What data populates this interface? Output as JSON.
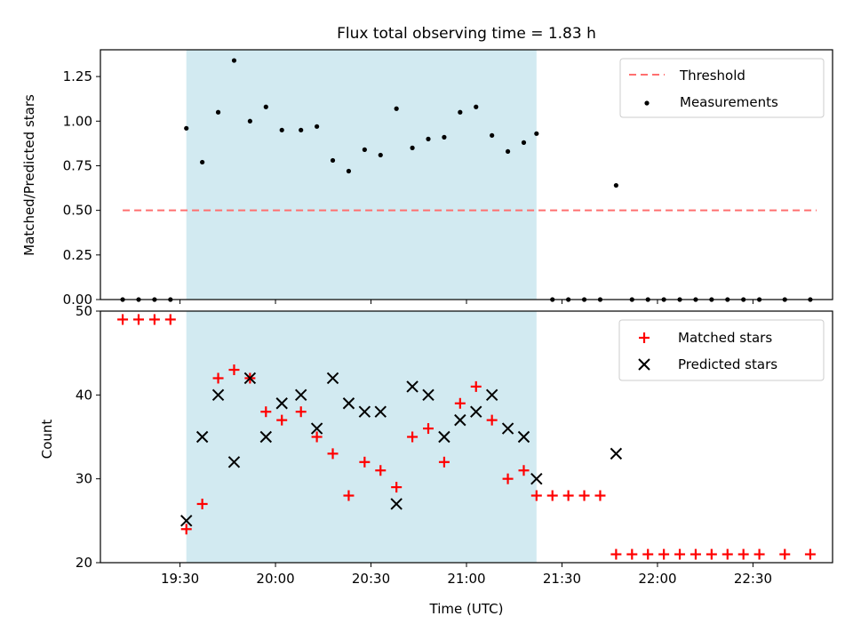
{
  "chart_data": [
    {
      "type": "scatter",
      "title": "Flux total observing time = 1.83 h",
      "ylabel": "Matched/Predicted stars",
      "ylim": [
        0,
        1.4
      ],
      "yticks": [
        "0.00",
        "0.25",
        "0.50",
        "0.75",
        "1.00",
        "1.25"
      ],
      "legend_position": "top-right",
      "shaded_interval": [
        "19:32",
        "21:22"
      ],
      "shaded_color": "#add8e6",
      "threshold": {
        "name": "Threshold",
        "value": 0.5,
        "x_range": [
          "19:12",
          "22:50"
        ],
        "color": "#ff6f6f"
      },
      "series": [
        {
          "name": "Measurements",
          "color": "#000000",
          "points": [
            [
              "19:12",
              0.0
            ],
            [
              "19:17",
              0.0
            ],
            [
              "19:22",
              0.0
            ],
            [
              "19:27",
              0.0
            ],
            [
              "19:32",
              0.96
            ],
            [
              "19:37",
              0.77
            ],
            [
              "19:42",
              1.05
            ],
            [
              "19:47",
              1.34
            ],
            [
              "19:52",
              1.0
            ],
            [
              "19:57",
              1.08
            ],
            [
              "20:02",
              0.95
            ],
            [
              "20:08",
              0.95
            ],
            [
              "20:13",
              0.97
            ],
            [
              "20:18",
              0.78
            ],
            [
              "20:23",
              0.72
            ],
            [
              "20:28",
              0.84
            ],
            [
              "20:33",
              0.81
            ],
            [
              "20:38",
              1.07
            ],
            [
              "20:43",
              0.85
            ],
            [
              "20:48",
              0.9
            ],
            [
              "20:53",
              0.91
            ],
            [
              "20:58",
              1.05
            ],
            [
              "21:03",
              1.08
            ],
            [
              "21:08",
              0.92
            ],
            [
              "21:13",
              0.83
            ],
            [
              "21:18",
              0.88
            ],
            [
              "21:22",
              0.93
            ],
            [
              "21:27",
              0.0
            ],
            [
              "21:32",
              0.0
            ],
            [
              "21:37",
              0.0
            ],
            [
              "21:42",
              0.0
            ],
            [
              "21:47",
              0.64
            ],
            [
              "21:52",
              0.0
            ],
            [
              "21:57",
              0.0
            ],
            [
              "22:02",
              0.0
            ],
            [
              "22:07",
              0.0
            ],
            [
              "22:12",
              0.0
            ],
            [
              "22:17",
              0.0
            ],
            [
              "22:22",
              0.0
            ],
            [
              "22:27",
              0.0
            ],
            [
              "22:32",
              0.0
            ],
            [
              "22:40",
              0.0
            ],
            [
              "22:48",
              0.0
            ]
          ]
        }
      ]
    },
    {
      "type": "scatter",
      "xlabel": "Time (UTC)",
      "ylabel": "Count",
      "ylim": [
        20,
        50
      ],
      "yticks": [
        "20",
        "30",
        "40",
        "50"
      ],
      "xticks": [
        "19:30",
        "20:00",
        "20:30",
        "21:00",
        "21:30",
        "22:00",
        "22:30"
      ],
      "xlim": [
        "19:05",
        "22:55"
      ],
      "legend_position": "top-right",
      "series": [
        {
          "name": "Matched stars",
          "color": "#ff0000",
          "marker": "+",
          "points": [
            [
              "19:12",
              49
            ],
            [
              "19:17",
              49
            ],
            [
              "19:22",
              49
            ],
            [
              "19:27",
              49
            ],
            [
              "19:32",
              24
            ],
            [
              "19:37",
              27
            ],
            [
              "19:42",
              42
            ],
            [
              "19:47",
              43
            ],
            [
              "19:52",
              42
            ],
            [
              "19:57",
              38
            ],
            [
              "20:02",
              37
            ],
            [
              "20:08",
              38
            ],
            [
              "20:13",
              35
            ],
            [
              "20:18",
              33
            ],
            [
              "20:23",
              28
            ],
            [
              "20:28",
              32
            ],
            [
              "20:33",
              31
            ],
            [
              "20:38",
              29
            ],
            [
              "20:43",
              35
            ],
            [
              "20:48",
              36
            ],
            [
              "20:53",
              32
            ],
            [
              "20:58",
              39
            ],
            [
              "21:03",
              41
            ],
            [
              "21:08",
              37
            ],
            [
              "21:13",
              30
            ],
            [
              "21:18",
              31
            ],
            [
              "21:22",
              28
            ],
            [
              "21:27",
              28
            ],
            [
              "21:32",
              28
            ],
            [
              "21:37",
              28
            ],
            [
              "21:42",
              28
            ],
            [
              "21:47",
              21
            ],
            [
              "21:52",
              21
            ],
            [
              "21:57",
              21
            ],
            [
              "22:02",
              21
            ],
            [
              "22:07",
              21
            ],
            [
              "22:12",
              21
            ],
            [
              "22:17",
              21
            ],
            [
              "22:22",
              21
            ],
            [
              "22:27",
              21
            ],
            [
              "22:32",
              21
            ],
            [
              "22:40",
              21
            ],
            [
              "22:48",
              21
            ]
          ]
        },
        {
          "name": "Predicted stars",
          "color": "#000000",
          "marker": "x",
          "points": [
            [
              "19:32",
              25
            ],
            [
              "19:37",
              35
            ],
            [
              "19:42",
              40
            ],
            [
              "19:47",
              32
            ],
            [
              "19:52",
              42
            ],
            [
              "19:57",
              35
            ],
            [
              "20:02",
              39
            ],
            [
              "20:08",
              40
            ],
            [
              "20:13",
              36
            ],
            [
              "20:18",
              42
            ],
            [
              "20:23",
              39
            ],
            [
              "20:28",
              38
            ],
            [
              "20:33",
              38
            ],
            [
              "20:38",
              27
            ],
            [
              "20:43",
              41
            ],
            [
              "20:48",
              40
            ],
            [
              "20:53",
              35
            ],
            [
              "20:58",
              37
            ],
            [
              "21:03",
              38
            ],
            [
              "21:08",
              40
            ],
            [
              "21:13",
              36
            ],
            [
              "21:18",
              35
            ],
            [
              "21:22",
              30
            ],
            [
              "21:47",
              33
            ]
          ]
        }
      ]
    }
  ]
}
